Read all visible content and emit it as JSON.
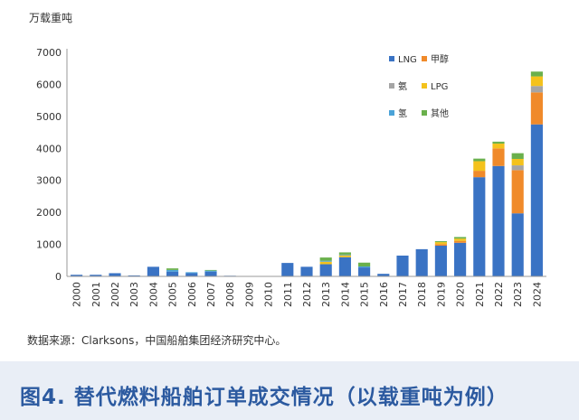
{
  "chart_data": {
    "type": "bar",
    "stacked": true,
    "unit_label": "万载重吨",
    "ylim": [
      0,
      7000
    ],
    "yticks": [
      0,
      1000,
      2000,
      3000,
      4000,
      5000,
      6000,
      7000
    ],
    "grid": false,
    "legend_position": "top-right",
    "categories": [
      "2000",
      "2001",
      "2002",
      "2003",
      "2004",
      "2005",
      "2006",
      "2007",
      "2008",
      "2009",
      "2010",
      "2011",
      "2012",
      "2013",
      "2014",
      "2015",
      "2016",
      "2017",
      "2018",
      "2019",
      "2020",
      "2021",
      "2022",
      "2023",
      "2024"
    ],
    "series": [
      {
        "name": "LNG",
        "color": "#3a73c4",
        "values": [
          50,
          50,
          100,
          30,
          300,
          150,
          100,
          150,
          20,
          10,
          10,
          420,
          300,
          380,
          600,
          280,
          80,
          650,
          850,
          960,
          1050,
          3100,
          3450,
          1970,
          4750
        ]
      },
      {
        "name": "甲醇",
        "color": "#f08a2a",
        "values": [
          0,
          0,
          0,
          0,
          0,
          0,
          0,
          0,
          0,
          0,
          0,
          0,
          0,
          0,
          0,
          0,
          0,
          0,
          0,
          50,
          60,
          200,
          550,
          1350,
          1000
        ]
      },
      {
        "name": "氨",
        "color": "#a5a5a5",
        "values": [
          0,
          0,
          0,
          0,
          0,
          0,
          0,
          0,
          0,
          0,
          0,
          0,
          0,
          0,
          0,
          0,
          0,
          0,
          0,
          0,
          0,
          0,
          0,
          150,
          200
        ]
      },
      {
        "name": "LPG",
        "color": "#f4c21c",
        "values": [
          0,
          0,
          0,
          0,
          0,
          0,
          0,
          0,
          0,
          0,
          0,
          0,
          0,
          80,
          60,
          0,
          0,
          0,
          0,
          60,
          70,
          300,
          150,
          200,
          300
        ]
      },
      {
        "name": "氢",
        "color": "#4ba3d8",
        "values": [
          0,
          0,
          0,
          0,
          0,
          50,
          30,
          30,
          0,
          0,
          0,
          0,
          0,
          30,
          20,
          30,
          0,
          0,
          0,
          0,
          0,
          0,
          0,
          0,
          0
        ]
      },
      {
        "name": "其他",
        "color": "#6ab04c",
        "values": [
          0,
          0,
          0,
          0,
          0,
          50,
          0,
          20,
          0,
          0,
          0,
          0,
          0,
          100,
          70,
          120,
          0,
          0,
          0,
          30,
          50,
          80,
          60,
          180,
          150
        ]
      }
    ]
  },
  "source_text": "数据来源：Clarksons，中国船舶集团经济研究中心。",
  "caption_text": "图4. 替代燃料船舶订单成交情况（以载重吨为例）"
}
